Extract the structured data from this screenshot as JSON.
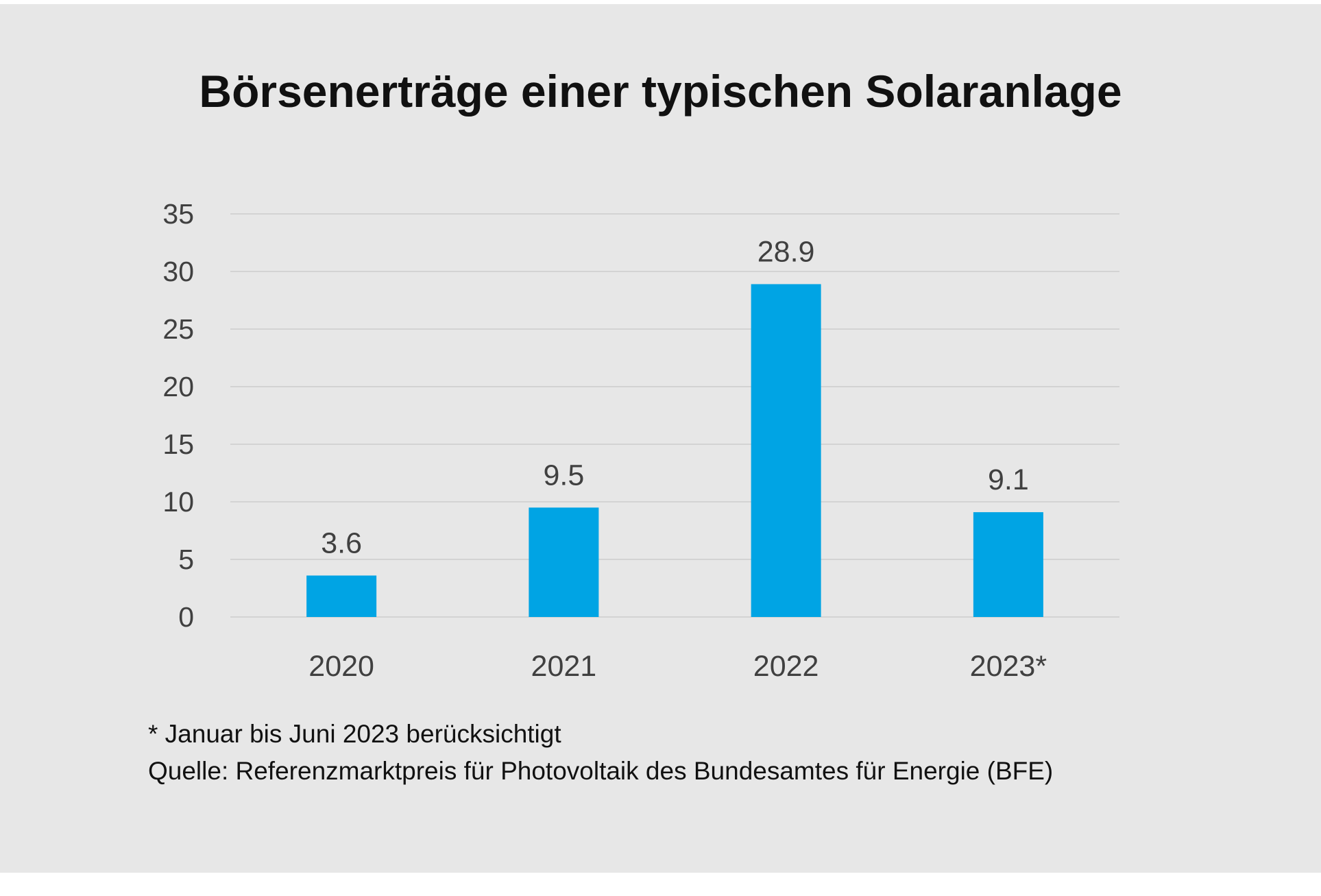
{
  "chart_data": {
    "type": "bar",
    "title": "Börsenerträge einer typischen Solaranlage",
    "categories": [
      "2020",
      "2021",
      "2022",
      "2023*"
    ],
    "values": [
      3.6,
      9.5,
      28.9,
      9.1
    ],
    "data_labels": [
      "3.6",
      "9.5",
      "28.9",
      "9.1"
    ],
    "y_ticks": [
      "0",
      "5",
      "10",
      "15",
      "20",
      "25",
      "30",
      "35"
    ],
    "ylim": [
      0,
      35
    ],
    "xlabel": "",
    "ylabel": "",
    "grid": true,
    "legend": "none",
    "bar_color": "#00a4e4"
  },
  "footnotes": {
    "note": "* Januar bis Juni 2023 berücksichtigt",
    "source": "Quelle: Referenzmarktpreis für Photovoltaik des Bundesamtes für Energie (BFE)"
  },
  "colors": {
    "background": "#e7e7e7",
    "gridline": "#d3d3d3",
    "text": "#404040",
    "bar": "#00a4e4"
  }
}
